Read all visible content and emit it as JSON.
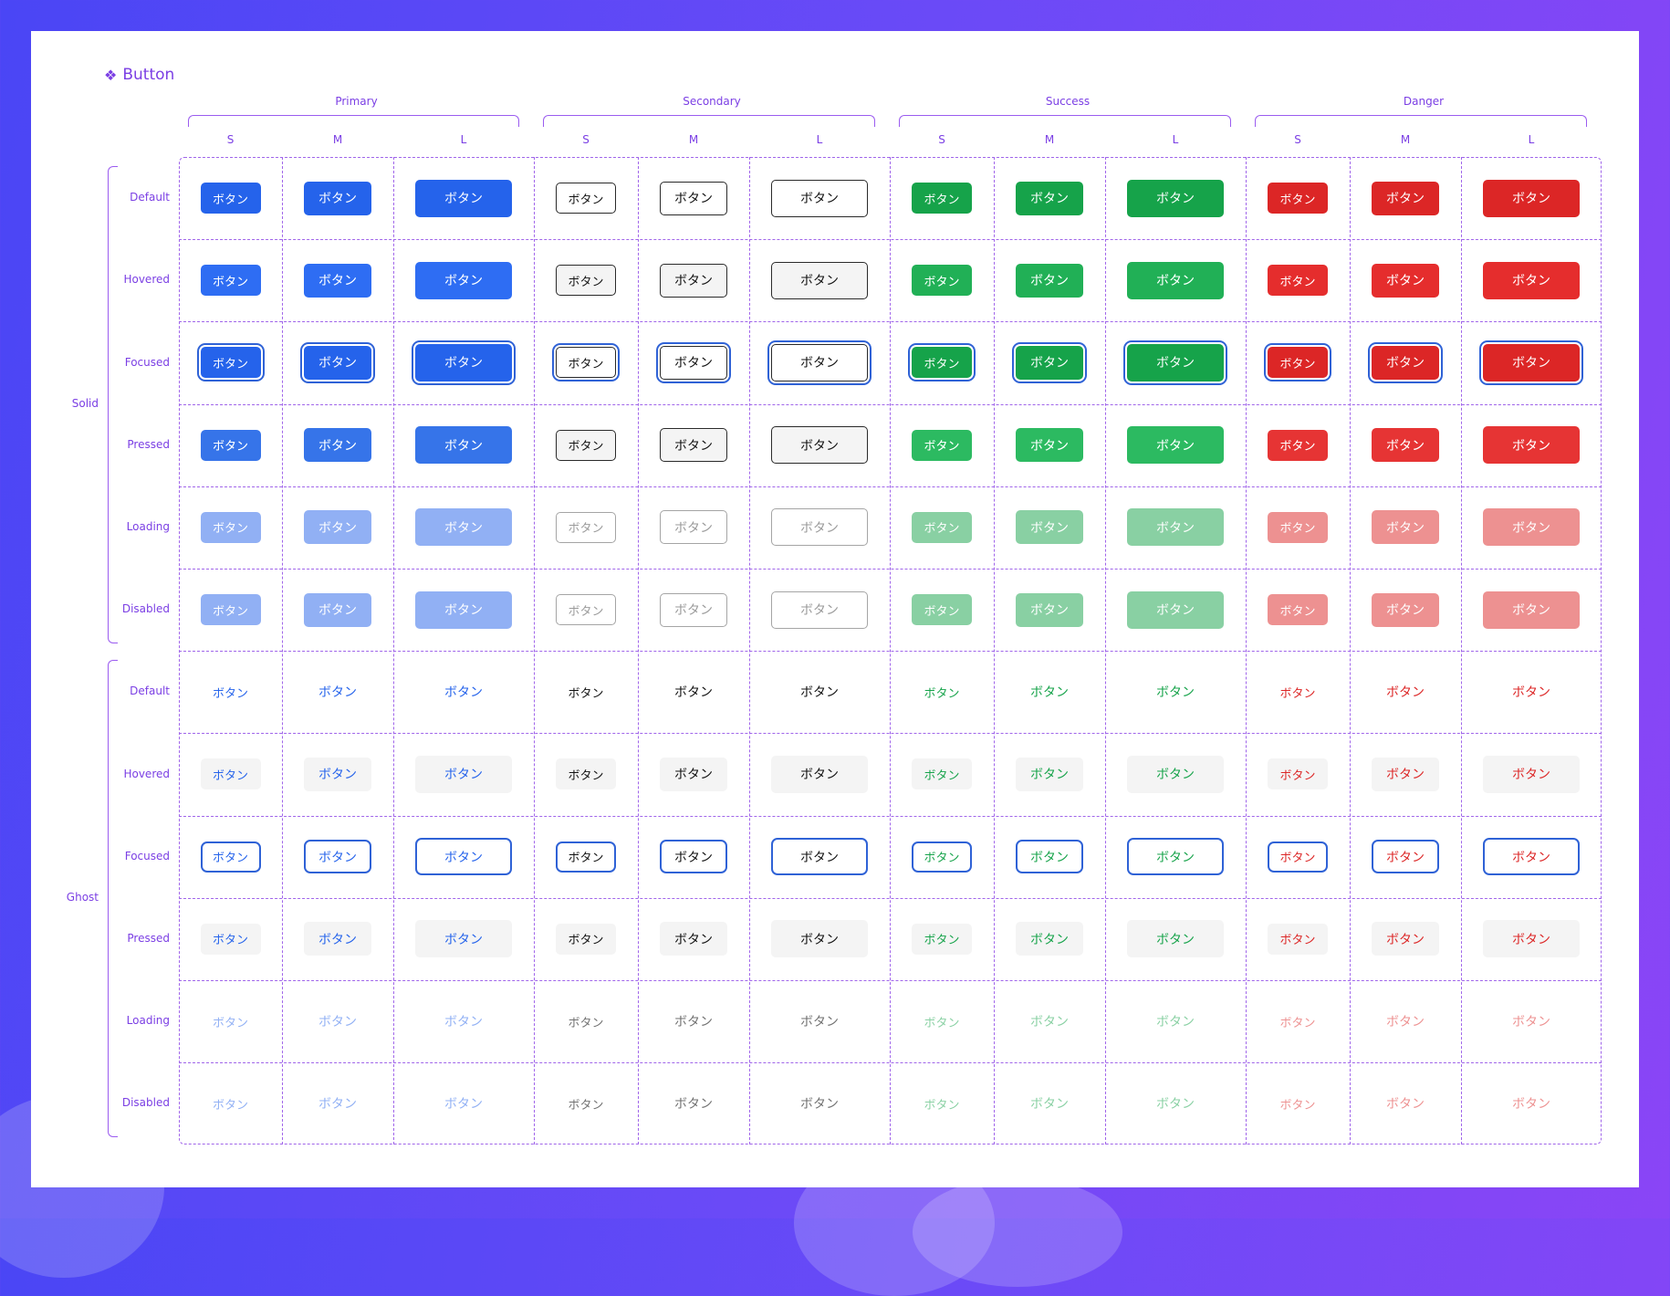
{
  "title": "Button",
  "title_icon": "component-icon",
  "groups": [
    {
      "key": "primary",
      "label": "Primary",
      "color": "#2563eb",
      "solid_text": "#ffffff"
    },
    {
      "key": "secondary",
      "label": "Secondary",
      "color": "#1f1f1f",
      "solid_text": "#111111"
    },
    {
      "key": "success",
      "label": "Success",
      "color": "#16a34a",
      "solid_text": "#ffffff"
    },
    {
      "key": "danger",
      "label": "Danger",
      "color": "#dc2626",
      "solid_text": "#ffffff"
    }
  ],
  "sizes": [
    "S",
    "M",
    "L"
  ],
  "variants": [
    {
      "key": "solid",
      "label": "Solid"
    },
    {
      "key": "ghost",
      "label": "Ghost"
    }
  ],
  "states": [
    "Default",
    "Hovered",
    "Focused",
    "Pressed",
    "Loading",
    "Disabled"
  ],
  "button_label": "ボタン",
  "focus_ring_color": "#2f62d6"
}
